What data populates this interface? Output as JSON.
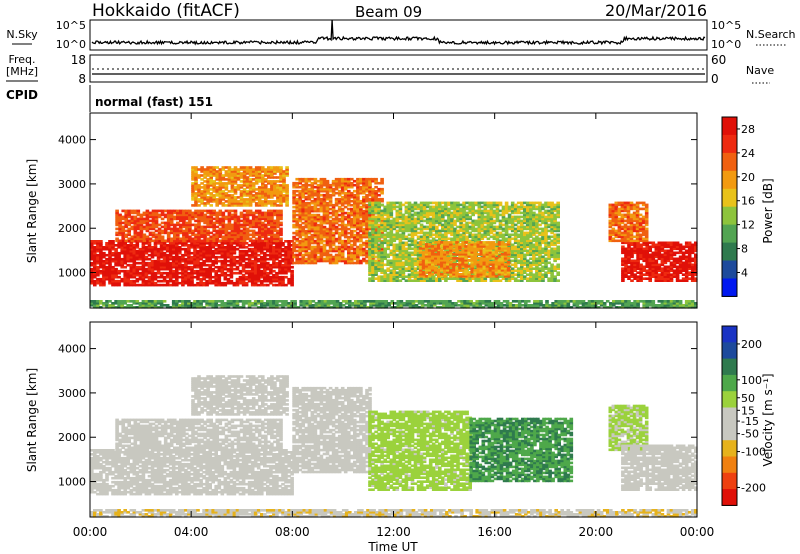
{
  "header": {
    "station": "Hokkaido (fitACF)",
    "beam": "Beam 09",
    "date": "20/Mar/2016"
  },
  "aux": {
    "nsky_label": "N.Sky",
    "nsearch_label": "N.Search",
    "noise_ticks": [
      "10^5",
      "10^0"
    ],
    "freq_label": "Freq.",
    "freq_unit": "[MHz]",
    "freq_ticks": [
      "18",
      "8"
    ],
    "nave_label": "Nave",
    "nave_ticks": [
      "60",
      "0"
    ],
    "cpid_label": "CPID",
    "cpid_value": "normal (fast) 151"
  },
  "colors": {
    "power": [
      "#0018f0",
      "#1d4a9c",
      "#2f7a4e",
      "#52a452",
      "#8dc43c",
      "#e8c21a",
      "#f29a10",
      "#f06010",
      "#ee2a10",
      "#e01008"
    ],
    "velocity": [
      "#1a33c4",
      "#1d4a9c",
      "#2f7a4e",
      "#4ea84a",
      "#9bd23c",
      "#c8c8c0",
      "#c8c8c0",
      "#e6b21c",
      "#f08010",
      "#ee4010",
      "#e01008"
    ]
  },
  "chart_data": [
    {
      "type": "heatmap",
      "name": "Power",
      "xlabel": "Time UT",
      "ylabel": "Slant Range [km]",
      "x_ticks": [
        "00:00",
        "04:00",
        "08:00",
        "12:00",
        "16:00",
        "20:00",
        "00:00"
      ],
      "y_ticks": [
        1000,
        2000,
        3000,
        4000
      ],
      "ylim": [
        200,
        4600
      ],
      "colorbar": {
        "label": "Power [dB]",
        "ticks": [
          4,
          8,
          12,
          16,
          20,
          24,
          28
        ],
        "range": [
          0,
          30
        ]
      },
      "regions": [
        {
          "t0": 0.0,
          "t1": 8.0,
          "r0": 700,
          "r1": 1700,
          "value": 28
        },
        {
          "t0": 1.0,
          "t1": 7.5,
          "r0": 1700,
          "r1": 2400,
          "value": 24
        },
        {
          "t0": 4.0,
          "t1": 7.8,
          "r0": 2500,
          "r1": 3400,
          "value": 20
        },
        {
          "t0": 8.0,
          "t1": 11.5,
          "r0": 1200,
          "r1": 3100,
          "value": 22
        },
        {
          "t0": 11.0,
          "t1": 18.5,
          "r0": 800,
          "r1": 2600,
          "value": 14
        },
        {
          "t0": 13.0,
          "t1": 16.5,
          "r0": 900,
          "r1": 1700,
          "value": 20
        },
        {
          "t0": 21.0,
          "t1": 24.0,
          "r0": 800,
          "r1": 1700,
          "value": 28
        },
        {
          "t0": 20.5,
          "t1": 22.0,
          "r0": 1700,
          "r1": 2600,
          "value": 22
        },
        {
          "t0": 0.0,
          "t1": 24.0,
          "r0": 200,
          "r1": 350,
          "value": 10
        }
      ]
    },
    {
      "type": "heatmap",
      "name": "Velocity",
      "xlabel": "Time UT",
      "ylabel": "Slant Range [km]",
      "x_ticks": [
        "00:00",
        "04:00",
        "08:00",
        "12:00",
        "16:00",
        "20:00",
        "00:00"
      ],
      "y_ticks": [
        1000,
        2000,
        3000,
        4000
      ],
      "ylim": [
        200,
        4600
      ],
      "colorbar": {
        "label": "Velocity [m s⁻¹]",
        "ticks": [
          200,
          100,
          50,
          15,
          -15,
          -50,
          -100,
          -200
        ],
        "range": [
          -250,
          250
        ]
      },
      "regions": [
        {
          "t0": 0.0,
          "t1": 8.0,
          "r0": 700,
          "r1": 1700,
          "value": 0
        },
        {
          "t0": 1.0,
          "t1": 7.5,
          "r0": 1700,
          "r1": 2400,
          "value": 0
        },
        {
          "t0": 4.0,
          "t1": 7.8,
          "r0": 2500,
          "r1": 3400,
          "value": 0
        },
        {
          "t0": 8.0,
          "t1": 11.0,
          "r0": 1200,
          "r1": 3100,
          "value": 0
        },
        {
          "t0": 11.0,
          "t1": 15.0,
          "r0": 800,
          "r1": 2600,
          "value": 40
        },
        {
          "t0": 15.0,
          "t1": 19.0,
          "r0": 1000,
          "r1": 2400,
          "value": 110
        },
        {
          "t0": 20.5,
          "t1": 22.0,
          "r0": 1700,
          "r1": 2700,
          "value": 30
        },
        {
          "t0": 21.0,
          "t1": 24.0,
          "r0": 800,
          "r1": 1800,
          "value": 0
        },
        {
          "t0": 0.0,
          "t1": 24.0,
          "r0": 200,
          "r1": 350,
          "value": -60
        }
      ]
    }
  ]
}
